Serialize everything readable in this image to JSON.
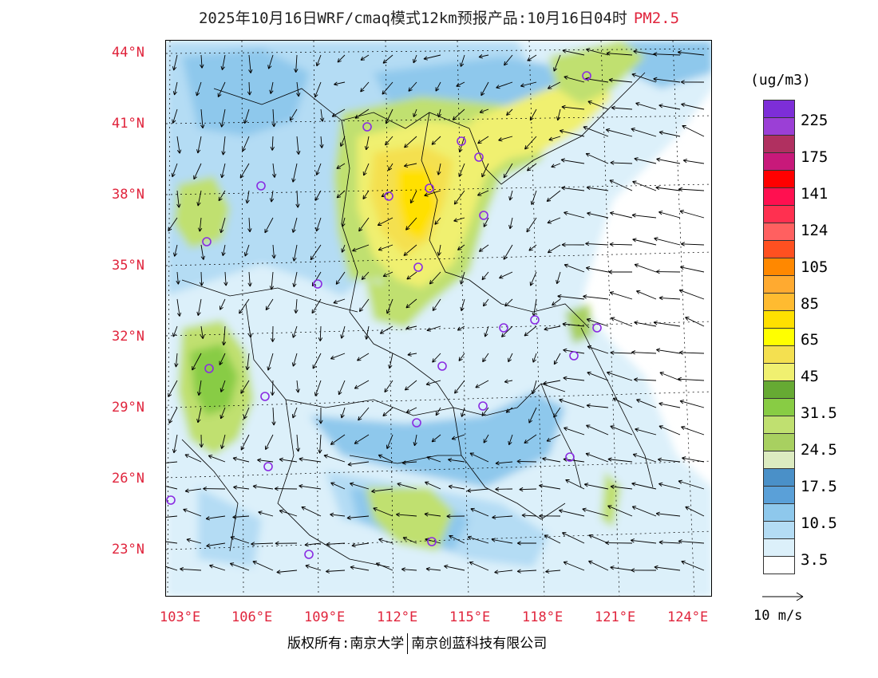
{
  "title": {
    "text": "2025年10月16日WRF/cmaq模式12km预报产品:10月16日04时",
    "species": "PM2.5"
  },
  "lat_labels": [
    "44°N",
    "41°N",
    "38°N",
    "35°N",
    "32°N",
    "29°N",
    "26°N",
    "23°N"
  ],
  "lon_labels": [
    "103°E",
    "106°E",
    "109°E",
    "112°E",
    "115°E",
    "118°E",
    "121°E",
    "124°E"
  ],
  "colorbar": {
    "unit": "(ug/m3)",
    "colors": [
      "#7d2ed8",
      "#9b3fd6",
      "#b03060",
      "#c8197a",
      "#ff0000",
      "#ff1050",
      "#ff3050",
      "#ff6060",
      "#ff5020",
      "#ff8800",
      "#ffaa30",
      "#ffbb30",
      "#ffe000",
      "#ffff00",
      "#f4e050",
      "#f0f070",
      "#66aa33",
      "#88cc44",
      "#c0e070",
      "#a8d060",
      "#dcebc0",
      "#4a90c8",
      "#5aa0d8",
      "#8ec8ec",
      "#b4dcf4",
      "#dcf0fa",
      "#ffffff"
    ],
    "labels": [
      "225",
      "175",
      "141",
      "124",
      "105",
      "85",
      "65",
      "45",
      "31.5",
      "24.5",
      "17.5",
      "10.5",
      "3.5"
    ]
  },
  "wind_reference": {
    "label": "10 m/s"
  },
  "copyright": {
    "left": "版权所有:南京大学",
    "right": "南京创蓝科技有限公司"
  },
  "colors": {
    "accent_red": "#e0243c",
    "city_marker": "#8a2be2"
  }
}
